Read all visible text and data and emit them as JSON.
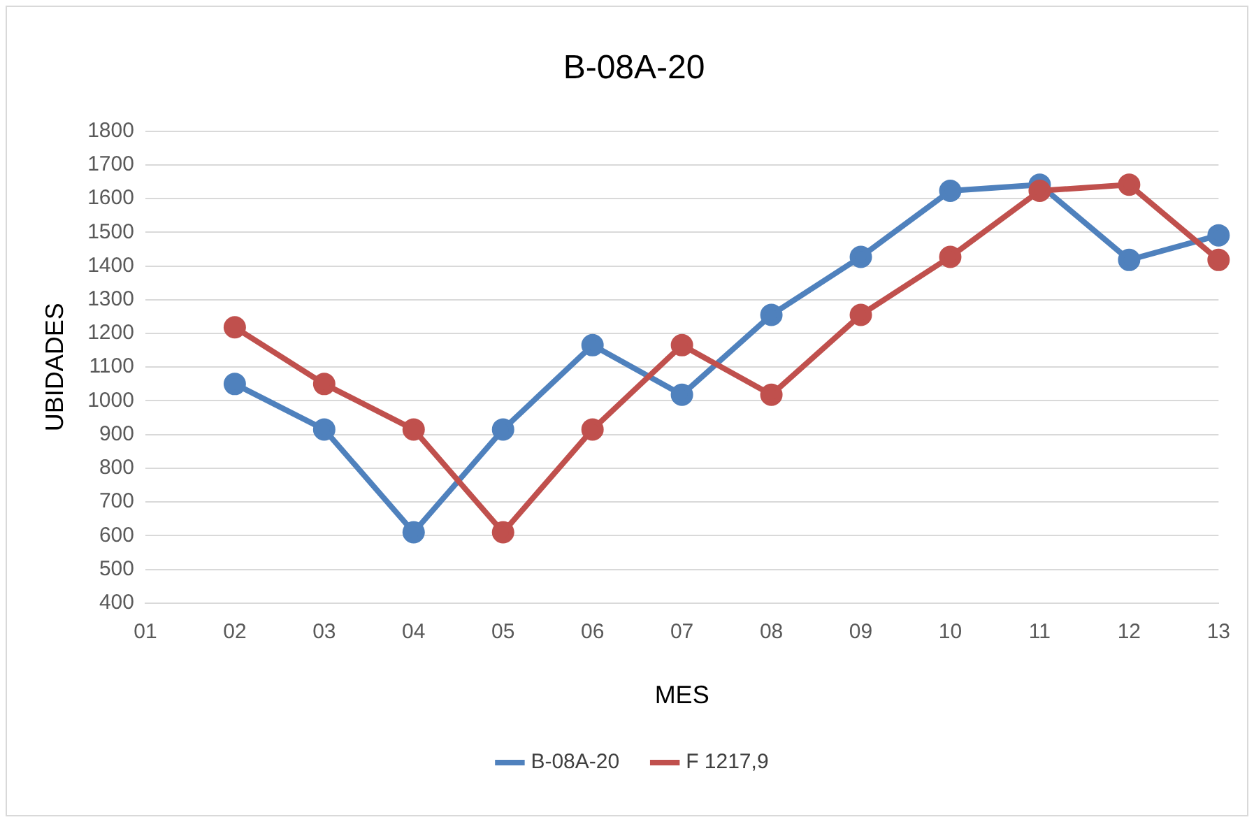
{
  "chart_data": {
    "type": "line",
    "title": "B-08A-20",
    "xlabel": "MES",
    "ylabel": "UBIDADES",
    "categories": [
      "01",
      "02",
      "03",
      "04",
      "05",
      "06",
      "07",
      "08",
      "09",
      "10",
      "11",
      "12",
      "13"
    ],
    "series": [
      {
        "name": "B-08A-20",
        "color": "#4f81bd",
        "values": [
          null,
          1050,
          915,
          610,
          915,
          1165,
          1018,
          1255,
          1427,
          1623,
          1641,
          1418,
          1491
        ]
      },
      {
        "name": "F 1217,9",
        "color": "#c0504d",
        "values": [
          null,
          1218,
          1050,
          915,
          610,
          915,
          1165,
          1018,
          1255,
          1427,
          1623,
          1641,
          1418
        ]
      }
    ],
    "ylim": [
      400,
      1800
    ],
    "yticks": [
      400,
      500,
      600,
      700,
      800,
      900,
      1000,
      1100,
      1200,
      1300,
      1400,
      1500,
      1600,
      1700,
      1800
    ],
    "grid": "y",
    "legend": "bottom",
    "marker": "circle",
    "line_style": "solid"
  }
}
